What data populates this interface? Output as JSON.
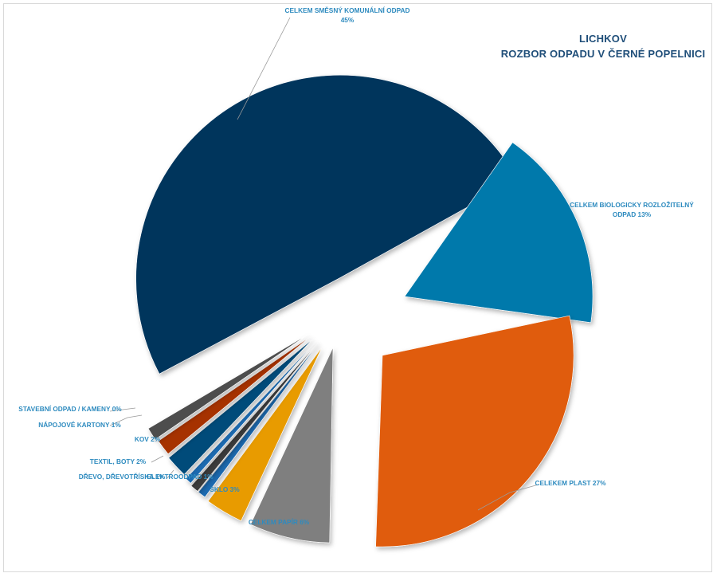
{
  "chart_data": {
    "type": "pie",
    "title": "LICHKOV",
    "subtitle": "ROZBOR ODPADU V ČERNÉ POPELNICI",
    "slices": [
      {
        "label": "CELKEM SMĚSNÝ KOMUNÁLNÍ ODPAD 45%",
        "value": 45,
        "color": "#00355c"
      },
      {
        "label": "CELKEM BIOLOGICKY ROZLOŽITELNÝ ODPAD 13%",
        "value": 13,
        "color": "#0079ab"
      },
      {
        "label": "CELEKEM PLAST 27%",
        "value": 27,
        "color": "#e05c0e"
      },
      {
        "label": "CELKEM PAPÍR 6%",
        "value": 6,
        "color": "#7f7f7f"
      },
      {
        "label": "SKLO 3%",
        "value": 3,
        "color": "#e89b00"
      },
      {
        "label": "ELEKTROODPAD 1%",
        "value": 1,
        "color": "#4a4a4a"
      },
      {
        "label": "DŘEVO, DŘEVOTŘÍSKA 1%",
        "value": 1,
        "color": "#8c3b00"
      },
      {
        "label": "TEXTIL, BOTY 2%",
        "value": 2,
        "color": "#1e6bb0"
      },
      {
        "label": "KOV 2%",
        "value": 2,
        "color": "#004c7a"
      },
      {
        "label": "NÁPOJOVÉ KARTONY 1%",
        "value": 1,
        "color": "#a63300"
      },
      {
        "label": "STAVEBNÍ ODPAD / KAMENY 0%",
        "value": 0.5,
        "color": "#4d4d4d"
      }
    ],
    "display_labels": {
      "smesny": [
        "CELKEM SMĚSNÝ KOMUNÁLNÍ ODPAD",
        "45%"
      ],
      "bio": [
        "CELKEM BIOLOGICKY ROZLOŽITELNÝ",
        "ODPAD 13%"
      ],
      "plast": [
        "CELEKEM PLAST 27%"
      ],
      "papir": [
        "CELKEM PAPÍR 6%"
      ],
      "sklo": [
        "SKLO 3%"
      ],
      "elektro": [
        "ELEKTROODPAD 1%"
      ],
      "drevo": [
        "DŘEVO, DŘEVOTŘÍSKA 1%"
      ],
      "textil": [
        "TEXTIL, BOTY 2%"
      ],
      "kov": [
        "KOV 2%"
      ],
      "kartony": [
        "NÁPOJOVÉ KARTONY 1%"
      ],
      "stavebni": [
        "STAVEBNÍ ODPAD / KAMENY 0%"
      ]
    },
    "legend": "none",
    "exploded": true
  }
}
